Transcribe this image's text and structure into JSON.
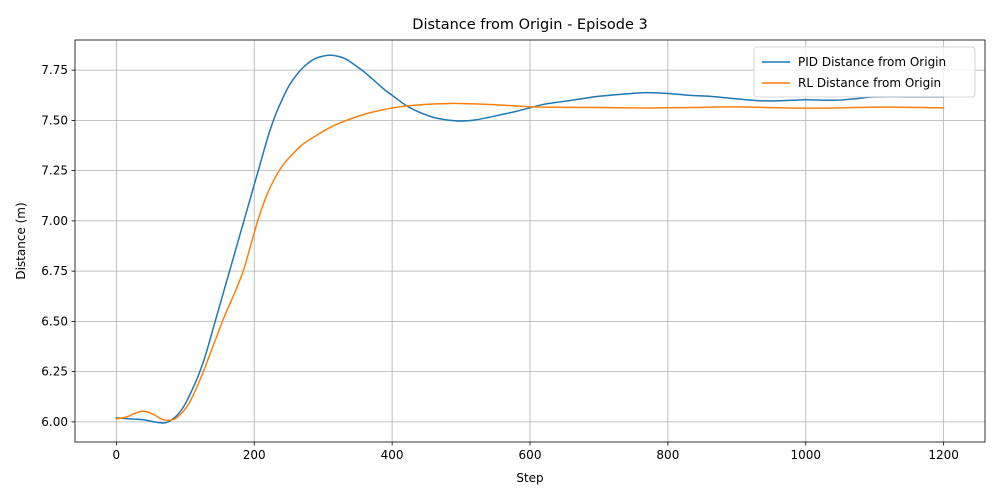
{
  "chart_data": {
    "type": "line",
    "title": "Distance from Origin - Episode 3",
    "xlabel": "Step",
    "ylabel": "Distance (m)",
    "xlim": [
      -60,
      1260
    ],
    "ylim": [
      5.9,
      7.9
    ],
    "xticks": [
      0,
      200,
      400,
      600,
      800,
      1000,
      1200
    ],
    "yticks": [
      6.0,
      6.25,
      6.5,
      6.75,
      7.0,
      7.25,
      7.5,
      7.75
    ],
    "grid": true,
    "legend_position": "top-right",
    "series": [
      {
        "name": "PID Distance from Origin",
        "color": "#1f77b4",
        "x": [
          0,
          20,
          40,
          55,
          70,
          80,
          90,
          100,
          110,
          120,
          130,
          140,
          150,
          160,
          170,
          180,
          190,
          200,
          210,
          220,
          230,
          240,
          250,
          260,
          270,
          280,
          290,
          300,
          310,
          320,
          330,
          340,
          350,
          360,
          370,
          380,
          390,
          400,
          420,
          440,
          460,
          480,
          500,
          520,
          540,
          560,
          580,
          600,
          620,
          650,
          680,
          700,
          740,
          770,
          800,
          830,
          860,
          900,
          940,
          980,
          1000,
          1040,
          1070,
          1100,
          1150,
          1200
        ],
        "y": [
          6.02,
          6.015,
          6.01,
          6.0,
          5.995,
          6.01,
          6.04,
          6.09,
          6.16,
          6.24,
          6.34,
          6.46,
          6.58,
          6.7,
          6.82,
          6.94,
          7.06,
          7.18,
          7.3,
          7.42,
          7.52,
          7.6,
          7.67,
          7.72,
          7.76,
          7.79,
          7.81,
          7.82,
          7.825,
          7.82,
          7.81,
          7.79,
          7.765,
          7.74,
          7.71,
          7.68,
          7.65,
          7.625,
          7.575,
          7.54,
          7.515,
          7.502,
          7.497,
          7.502,
          7.515,
          7.53,
          7.545,
          7.563,
          7.58,
          7.595,
          7.61,
          7.62,
          7.632,
          7.638,
          7.634,
          7.625,
          7.62,
          7.607,
          7.597,
          7.6,
          7.603,
          7.6,
          7.607,
          7.617,
          7.617,
          7.617
        ]
      },
      {
        "name": "RL Distance from Origin",
        "color": "#ff7f0e",
        "x": [
          0,
          15,
          25,
          35,
          45,
          55,
          65,
          75,
          85,
          95,
          105,
          115,
          125,
          135,
          145,
          155,
          165,
          175,
          185,
          195,
          205,
          215,
          225,
          240,
          255,
          270,
          290,
          310,
          330,
          350,
          370,
          390,
          410,
          430,
          450,
          470,
          490,
          520,
          560,
          600,
          650,
          700,
          760,
          800,
          850,
          880,
          920,
          960,
          1000,
          1040,
          1100,
          1150,
          1200
        ],
        "y": [
          6.015,
          6.025,
          6.04,
          6.052,
          6.05,
          6.035,
          6.015,
          6.008,
          6.015,
          6.045,
          6.09,
          6.16,
          6.24,
          6.33,
          6.42,
          6.51,
          6.59,
          6.67,
          6.76,
          6.88,
          7.0,
          7.1,
          7.18,
          7.27,
          7.33,
          7.38,
          7.425,
          7.465,
          7.495,
          7.52,
          7.54,
          7.555,
          7.567,
          7.575,
          7.58,
          7.583,
          7.585,
          7.582,
          7.576,
          7.568,
          7.565,
          7.564,
          7.562,
          7.563,
          7.565,
          7.567,
          7.566,
          7.563,
          7.561,
          7.562,
          7.566,
          7.565,
          7.562
        ]
      }
    ]
  }
}
